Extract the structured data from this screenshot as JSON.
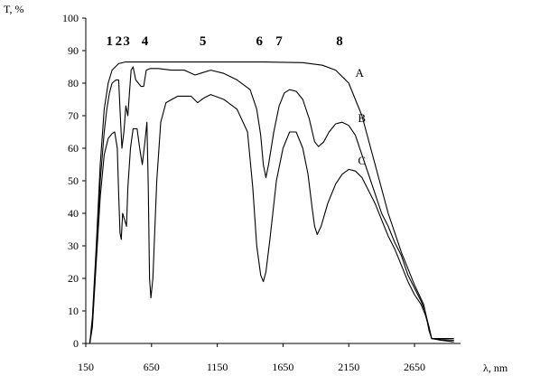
{
  "chart_data": {
    "type": "line",
    "xlabel": "λ, nm",
    "ylabel": "T, %",
    "xlim": [
      150,
      3000
    ],
    "ylim": [
      0,
      100
    ],
    "x_ticks": [
      150,
      650,
      1150,
      1650,
      2150,
      2650
    ],
    "y_ticks": [
      0,
      10,
      20,
      30,
      40,
      50,
      60,
      70,
      80,
      90,
      100
    ],
    "grid": false,
    "legend": "none",
    "band_labels": [
      {
        "text": "1",
        "x": 330
      },
      {
        "text": "2",
        "x": 400
      },
      {
        "text": "3",
        "x": 460
      },
      {
        "text": "4",
        "x": 600
      },
      {
        "text": "5",
        "x": 1040
      },
      {
        "text": "6",
        "x": 1470
      },
      {
        "text": "7",
        "x": 1620
      },
      {
        "text": "8",
        "x": 2080
      }
    ],
    "series": [
      {
        "name": "A",
        "label_at": {
          "x": 2200,
          "y": 82
        },
        "points": [
          [
            180,
            0
          ],
          [
            200,
            8
          ],
          [
            230,
            30
          ],
          [
            260,
            55
          ],
          [
            290,
            72
          ],
          [
            320,
            80
          ],
          [
            350,
            84
          ],
          [
            400,
            86
          ],
          [
            450,
            86.5
          ],
          [
            600,
            86.5
          ],
          [
            1000,
            86.5
          ],
          [
            1500,
            86.5
          ],
          [
            1800,
            86.3
          ],
          [
            1950,
            85.5
          ],
          [
            2050,
            84
          ],
          [
            2150,
            80
          ],
          [
            2250,
            70
          ],
          [
            2350,
            55
          ],
          [
            2450,
            40
          ],
          [
            2550,
            28
          ],
          [
            2650,
            18
          ],
          [
            2720,
            12
          ],
          [
            2760,
            4
          ],
          [
            2780,
            1.5
          ],
          [
            2850,
            1
          ],
          [
            2950,
            0.5
          ]
        ]
      },
      {
        "name": "B",
        "label_at": {
          "x": 2220,
          "y": 68
        },
        "points": [
          [
            180,
            0
          ],
          [
            200,
            6
          ],
          [
            230,
            28
          ],
          [
            260,
            50
          ],
          [
            290,
            65
          ],
          [
            310,
            72
          ],
          [
            330,
            77
          ],
          [
            350,
            80
          ],
          [
            380,
            81
          ],
          [
            400,
            81
          ],
          [
            410,
            72
          ],
          [
            425,
            60
          ],
          [
            440,
            65
          ],
          [
            455,
            73
          ],
          [
            470,
            70
          ],
          [
            480,
            76
          ],
          [
            495,
            84
          ],
          [
            510,
            85
          ],
          [
            530,
            81
          ],
          [
            550,
            80
          ],
          [
            570,
            79
          ],
          [
            590,
            79
          ],
          [
            610,
            84
          ],
          [
            640,
            84.5
          ],
          [
            700,
            84.5
          ],
          [
            800,
            84
          ],
          [
            900,
            84
          ],
          [
            980,
            82.5
          ],
          [
            1020,
            83
          ],
          [
            1100,
            84
          ],
          [
            1200,
            83
          ],
          [
            1300,
            81
          ],
          [
            1400,
            78
          ],
          [
            1450,
            72
          ],
          [
            1480,
            64
          ],
          [
            1500,
            55
          ],
          [
            1520,
            51
          ],
          [
            1540,
            55
          ],
          [
            1580,
            65
          ],
          [
            1620,
            73
          ],
          [
            1660,
            77
          ],
          [
            1700,
            78
          ],
          [
            1750,
            77.5
          ],
          [
            1800,
            75
          ],
          [
            1850,
            69
          ],
          [
            1890,
            62
          ],
          [
            1920,
            60.5
          ],
          [
            1960,
            62
          ],
          [
            2000,
            65
          ],
          [
            2050,
            67.5
          ],
          [
            2100,
            68
          ],
          [
            2150,
            67
          ],
          [
            2200,
            64
          ],
          [
            2250,
            58
          ],
          [
            2300,
            52
          ],
          [
            2350,
            46
          ],
          [
            2400,
            40
          ],
          [
            2450,
            36
          ],
          [
            2500,
            31
          ],
          [
            2550,
            27
          ],
          [
            2600,
            21
          ],
          [
            2650,
            17
          ],
          [
            2700,
            13
          ],
          [
            2730,
            10
          ],
          [
            2760,
            5
          ],
          [
            2780,
            1.5
          ],
          [
            2850,
            1.2
          ],
          [
            2950,
            1
          ]
        ]
      },
      {
        "name": "C",
        "label_at": {
          "x": 2220,
          "y": 55
        },
        "points": [
          [
            180,
            0
          ],
          [
            200,
            5
          ],
          [
            230,
            25
          ],
          [
            260,
            45
          ],
          [
            290,
            58
          ],
          [
            320,
            63
          ],
          [
            350,
            64.5
          ],
          [
            370,
            65
          ],
          [
            390,
            60
          ],
          [
            400,
            46
          ],
          [
            410,
            34
          ],
          [
            420,
            32
          ],
          [
            430,
            40
          ],
          [
            445,
            38
          ],
          [
            460,
            36
          ],
          [
            470,
            48
          ],
          [
            490,
            60
          ],
          [
            510,
            66
          ],
          [
            540,
            66
          ],
          [
            560,
            60
          ],
          [
            580,
            55
          ],
          [
            600,
            62
          ],
          [
            615,
            68
          ],
          [
            625,
            48
          ],
          [
            635,
            20
          ],
          [
            645,
            14
          ],
          [
            660,
            20
          ],
          [
            690,
            50
          ],
          [
            720,
            68
          ],
          [
            760,
            74
          ],
          [
            850,
            76
          ],
          [
            950,
            76
          ],
          [
            1000,
            74
          ],
          [
            1050,
            75.5
          ],
          [
            1100,
            76.5
          ],
          [
            1200,
            75
          ],
          [
            1300,
            72
          ],
          [
            1380,
            65
          ],
          [
            1420,
            48
          ],
          [
            1450,
            30
          ],
          [
            1480,
            21
          ],
          [
            1500,
            19
          ],
          [
            1520,
            22
          ],
          [
            1550,
            32
          ],
          [
            1600,
            50
          ],
          [
            1650,
            60
          ],
          [
            1700,
            65
          ],
          [
            1750,
            65
          ],
          [
            1800,
            60
          ],
          [
            1840,
            52
          ],
          [
            1870,
            42
          ],
          [
            1890,
            36
          ],
          [
            1910,
            33.5
          ],
          [
            1940,
            36
          ],
          [
            1990,
            43
          ],
          [
            2050,
            49
          ],
          [
            2100,
            52
          ],
          [
            2150,
            53.5
          ],
          [
            2200,
            53
          ],
          [
            2250,
            51
          ],
          [
            2300,
            47
          ],
          [
            2350,
            43
          ],
          [
            2400,
            38
          ],
          [
            2450,
            33
          ],
          [
            2500,
            29
          ],
          [
            2550,
            24
          ],
          [
            2600,
            19
          ],
          [
            2650,
            15
          ],
          [
            2700,
            12
          ],
          [
            2730,
            9
          ],
          [
            2760,
            5
          ],
          [
            2780,
            1.5
          ],
          [
            2850,
            1.5
          ],
          [
            2950,
            1.5
          ]
        ]
      }
    ]
  }
}
